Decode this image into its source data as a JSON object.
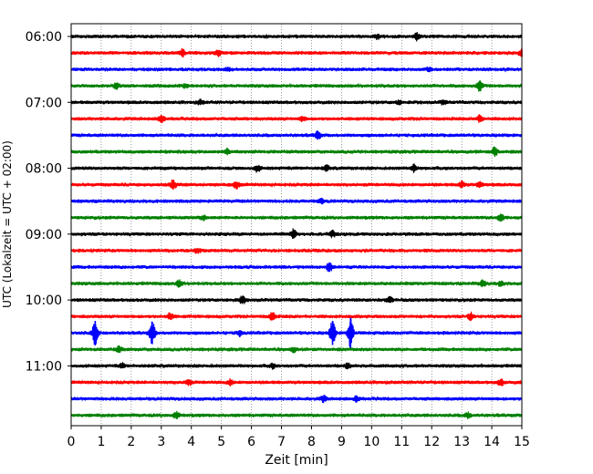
{
  "chart_data": {
    "type": "line",
    "title": "",
    "xlabel": "Zeit  [min]",
    "ylabel": "UTC (Lokalzeit = UTC + 02:00)",
    "xlim": [
      0,
      15
    ],
    "x_ticks": [
      0,
      1,
      2,
      3,
      4,
      5,
      6,
      7,
      8,
      9,
      10,
      11,
      12,
      13,
      14,
      15
    ],
    "y_tick_labels": [
      "06:00",
      "07:00",
      "08:00",
      "09:00",
      "10:00",
      "11:00"
    ],
    "grid": "vertical dotted",
    "colors": [
      "#000000",
      "#ff0000",
      "#0000ff",
      "#008000"
    ],
    "traces": [
      {
        "start": "06:00",
        "color": "#000000",
        "events": [
          [
            10.2,
            0.5
          ],
          [
            11.5,
            0.8
          ]
        ]
      },
      {
        "start": "06:15",
        "color": "#ff0000",
        "events": [
          [
            3.7,
            0.9
          ],
          [
            4.9,
            0.6
          ],
          [
            15.0,
            0.9
          ]
        ]
      },
      {
        "start": "06:30",
        "color": "#0000ff",
        "events": [
          [
            5.2,
            0.4
          ],
          [
            11.9,
            0.4
          ]
        ]
      },
      {
        "start": "06:45",
        "color": "#008000",
        "events": [
          [
            1.5,
            0.6
          ],
          [
            3.8,
            0.4
          ],
          [
            13.6,
            1.2
          ]
        ]
      },
      {
        "start": "07:00",
        "color": "#000000",
        "events": [
          [
            4.3,
            0.5
          ],
          [
            10.9,
            0.4
          ],
          [
            12.4,
            0.6
          ]
        ]
      },
      {
        "start": "07:15",
        "color": "#ff0000",
        "events": [
          [
            3.0,
            0.9
          ],
          [
            7.7,
            0.5
          ],
          [
            13.6,
            0.8
          ]
        ]
      },
      {
        "start": "07:30",
        "color": "#0000ff",
        "events": [
          [
            8.2,
            1.0
          ]
        ]
      },
      {
        "start": "07:45",
        "color": "#008000",
        "events": [
          [
            5.2,
            0.7
          ],
          [
            14.1,
            1.1
          ]
        ]
      },
      {
        "start": "08:00",
        "color": "#000000",
        "events": [
          [
            6.2,
            0.7
          ],
          [
            8.5,
            0.6
          ],
          [
            11.4,
            0.8
          ]
        ]
      },
      {
        "start": "08:15",
        "color": "#ff0000",
        "events": [
          [
            3.4,
            1.0
          ],
          [
            5.5,
            0.8
          ],
          [
            13.0,
            0.7
          ],
          [
            13.6,
            0.6
          ]
        ]
      },
      {
        "start": "08:30",
        "color": "#0000ff",
        "events": [
          [
            8.3,
            0.6
          ]
        ]
      },
      {
        "start": "08:45",
        "color": "#008000",
        "events": [
          [
            4.4,
            0.5
          ],
          [
            14.3,
            0.9
          ]
        ]
      },
      {
        "start": "09:00",
        "color": "#000000",
        "events": [
          [
            7.4,
            1.0
          ],
          [
            8.7,
            0.7
          ]
        ]
      },
      {
        "start": "09:15",
        "color": "#ff0000",
        "events": [
          [
            4.2,
            0.6
          ]
        ]
      },
      {
        "start": "09:30",
        "color": "#0000ff",
        "events": [
          [
            8.6,
            1.1
          ]
        ]
      },
      {
        "start": "09:45",
        "color": "#008000",
        "events": [
          [
            3.6,
            0.8
          ],
          [
            13.7,
            0.7
          ],
          [
            14.3,
            0.6
          ]
        ]
      },
      {
        "start": "10:00",
        "color": "#000000",
        "events": [
          [
            5.7,
            0.9
          ],
          [
            10.6,
            0.8
          ]
        ]
      },
      {
        "start": "10:15",
        "color": "#ff0000",
        "events": [
          [
            3.3,
            0.8
          ],
          [
            6.7,
            0.9
          ],
          [
            13.3,
            0.8
          ]
        ]
      },
      {
        "start": "10:30",
        "color": "#0000ff",
        "events": [
          [
            0.8,
            2.8
          ],
          [
            2.7,
            2.6
          ],
          [
            8.7,
            2.8
          ],
          [
            9.3,
            3.5
          ],
          [
            5.6,
            0.6
          ]
        ]
      },
      {
        "start": "10:45",
        "color": "#008000",
        "events": [
          [
            1.6,
            0.6
          ],
          [
            7.4,
            0.5
          ]
        ]
      },
      {
        "start": "11:00",
        "color": "#000000",
        "events": [
          [
            1.7,
            0.5
          ],
          [
            6.7,
            0.5
          ],
          [
            9.2,
            0.6
          ]
        ]
      },
      {
        "start": "11:15",
        "color": "#ff0000",
        "events": [
          [
            3.9,
            0.7
          ],
          [
            5.3,
            0.6
          ],
          [
            14.3,
            0.7
          ]
        ]
      },
      {
        "start": "11:30",
        "color": "#0000ff",
        "events": [
          [
            8.4,
            0.7
          ],
          [
            9.5,
            0.6
          ]
        ]
      },
      {
        "start": "11:45",
        "color": "#008000",
        "events": [
          [
            3.5,
            0.7
          ],
          [
            13.2,
            0.6
          ]
        ]
      }
    ]
  }
}
